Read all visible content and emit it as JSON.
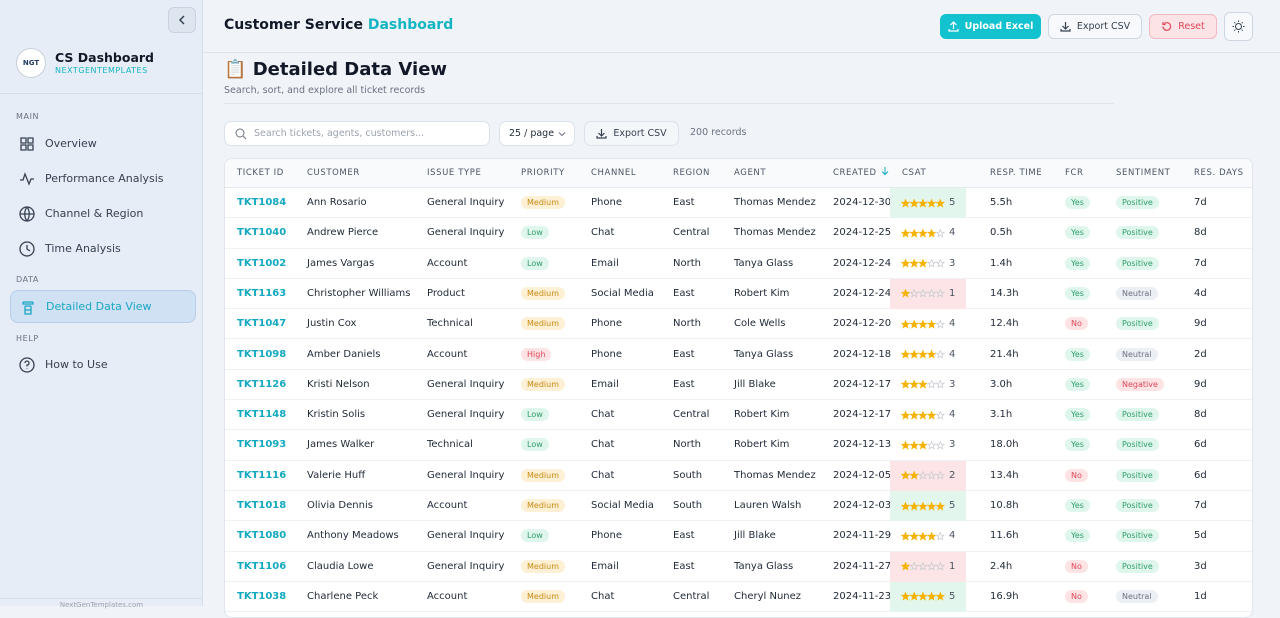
{
  "sidebar": {
    "logo": "NGT",
    "title": "CS Dashboard",
    "subtitle": "NEXTGENTEMPLATES",
    "sections": [
      {
        "label": "MAIN",
        "items": [
          "Overview",
          "Performance Analysis",
          "Channel & Region",
          "Time Analysis"
        ]
      },
      {
        "label": "DATA",
        "items": [
          "Detailed Data View"
        ]
      },
      {
        "label": "HELP",
        "items": [
          "How to Use"
        ]
      }
    ],
    "footer": "NextGenTemplates.com"
  },
  "header": {
    "title": "Customer Service",
    "title_accent": "Dashboard",
    "buttons": [
      "Upload Excel",
      "Export CSV",
      "Reset"
    ]
  },
  "page": {
    "icon": "📋",
    "title": "Detailed Data View",
    "subtitle": "Search, sort, and explore all ticket records"
  },
  "toolbar": {
    "search_placeholder": "Search tickets, agents, customers...",
    "page_size": "25 / page",
    "export": "Export CSV",
    "records": "200 records"
  },
  "table": {
    "columns": [
      "TICKET ID",
      "CUSTOMER",
      "ISSUE TYPE",
      "PRIORITY",
      "CHANNEL",
      "REGION",
      "AGENT",
      "CREATED",
      "CSAT",
      "RESP. TIME",
      "FCR",
      "SENTIMENT",
      "RES. DAYS"
    ],
    "rows": [
      [
        "TKT1084",
        "Ann Rosario",
        "General Inquiry",
        "Medium",
        "Phone",
        "East",
        "Thomas Mendez",
        "2024-12-30",
        5,
        "5.5h",
        "Yes",
        "Positive",
        "7d"
      ],
      [
        "TKT1040",
        "Andrew Pierce",
        "General Inquiry",
        "Low",
        "Chat",
        "Central",
        "Thomas Mendez",
        "2024-12-25",
        4,
        "0.5h",
        "Yes",
        "Positive",
        "8d"
      ],
      [
        "TKT1002",
        "James Vargas",
        "Account",
        "Low",
        "Email",
        "North",
        "Tanya Glass",
        "2024-12-24",
        3,
        "1.4h",
        "Yes",
        "Positive",
        "7d"
      ],
      [
        "TKT1163",
        "Christopher Williams",
        "Product",
        "Medium",
        "Social Media",
        "East",
        "Robert Kim",
        "2024-12-24",
        1,
        "14.3h",
        "Yes",
        "Neutral",
        "4d"
      ],
      [
        "TKT1047",
        "Justin Cox",
        "Technical",
        "Medium",
        "Phone",
        "North",
        "Cole Wells",
        "2024-12-20",
        4,
        "12.4h",
        "No",
        "Positive",
        "9d"
      ],
      [
        "TKT1098",
        "Amber Daniels",
        "Account",
        "High",
        "Phone",
        "East",
        "Tanya Glass",
        "2024-12-18",
        4,
        "21.4h",
        "Yes",
        "Neutral",
        "2d"
      ],
      [
        "TKT1126",
        "Kristi Nelson",
        "General Inquiry",
        "Medium",
        "Email",
        "East",
        "Jill Blake",
        "2024-12-17",
        3,
        "3.0h",
        "Yes",
        "Negative",
        "9d"
      ],
      [
        "TKT1148",
        "Kristin Solis",
        "General Inquiry",
        "Low",
        "Chat",
        "Central",
        "Robert Kim",
        "2024-12-17",
        4,
        "3.1h",
        "Yes",
        "Positive",
        "8d"
      ],
      [
        "TKT1093",
        "James Walker",
        "Technical",
        "Low",
        "Chat",
        "North",
        "Robert Kim",
        "2024-12-13",
        3,
        "18.0h",
        "Yes",
        "Positive",
        "6d"
      ],
      [
        "TKT1116",
        "Valerie Huff",
        "General Inquiry",
        "Medium",
        "Chat",
        "South",
        "Thomas Mendez",
        "2024-12-05",
        2,
        "13.4h",
        "No",
        "Positive",
        "6d"
      ],
      [
        "TKT1018",
        "Olivia Dennis",
        "Account",
        "Medium",
        "Social Media",
        "South",
        "Lauren Walsh",
        "2024-12-03",
        5,
        "10.8h",
        "Yes",
        "Positive",
        "7d"
      ],
      [
        "TKT1080",
        "Anthony Meadows",
        "General Inquiry",
        "Low",
        "Phone",
        "East",
        "Jill Blake",
        "2024-11-29",
        4,
        "11.6h",
        "Yes",
        "Positive",
        "5d"
      ],
      [
        "TKT1106",
        "Claudia Lowe",
        "General Inquiry",
        "Medium",
        "Email",
        "East",
        "Tanya Glass",
        "2024-11-27",
        1,
        "2.4h",
        "No",
        "Positive",
        "3d"
      ],
      [
        "TKT1038",
        "Charlene Peck",
        "Account",
        "Medium",
        "Chat",
        "Central",
        "Cheryl Nunez",
        "2024-11-23",
        5,
        "16.9h",
        "No",
        "Neutral",
        "1d"
      ]
    ]
  }
}
